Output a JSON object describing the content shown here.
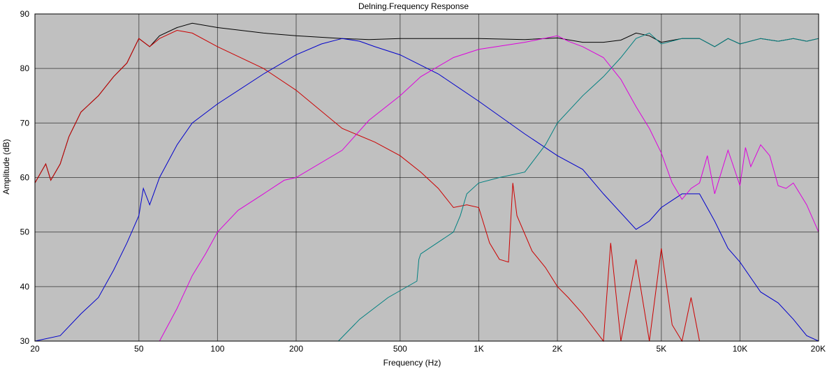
{
  "chart_data": {
    "type": "line",
    "title": "Delning.Frequency Response",
    "xlabel": "Frequency (Hz)",
    "ylabel": "Amplitude (dB)",
    "xscale": "log",
    "xlim": [
      20,
      20000
    ],
    "ylim": [
      30,
      90
    ],
    "grid": true,
    "x_ticks": [
      {
        "value": 20,
        "label": "20"
      },
      {
        "value": 50,
        "label": "50"
      },
      {
        "value": 100,
        "label": "100"
      },
      {
        "value": 200,
        "label": "200"
      },
      {
        "value": 500,
        "label": "500"
      },
      {
        "value": 1000,
        "label": "1K"
      },
      {
        "value": 2000,
        "label": "2K"
      },
      {
        "value": 5000,
        "label": "5K"
      },
      {
        "value": 10000,
        "label": "10K"
      },
      {
        "value": 20000,
        "label": "20K"
      }
    ],
    "y_ticks": [
      {
        "value": 30,
        "label": "30"
      },
      {
        "value": 40,
        "label": "40"
      },
      {
        "value": 50,
        "label": "50"
      },
      {
        "value": 60,
        "label": "60"
      },
      {
        "value": 70,
        "label": "70"
      },
      {
        "value": 80,
        "label": "80"
      },
      {
        "value": 90,
        "label": "90"
      }
    ],
    "series": [
      {
        "color": "#000000",
        "points": [
          [
            20,
            59
          ],
          [
            22,
            62.5
          ],
          [
            23,
            59.5
          ],
          [
            25,
            62.5
          ],
          [
            27,
            67.5
          ],
          [
            30,
            72
          ],
          [
            35,
            75
          ],
          [
            40,
            78.5
          ],
          [
            45,
            81
          ],
          [
            50,
            85.5
          ],
          [
            55,
            84
          ],
          [
            60,
            86
          ],
          [
            70,
            87.5
          ],
          [
            80,
            88.3
          ],
          [
            100,
            87.5
          ],
          [
            150,
            86.5
          ],
          [
            200,
            86
          ],
          [
            300,
            85.5
          ],
          [
            380,
            85.3
          ],
          [
            500,
            85.5
          ],
          [
            700,
            85.5
          ],
          [
            1000,
            85.5
          ],
          [
            1500,
            85.3
          ],
          [
            2000,
            85.6
          ],
          [
            2500,
            84.8
          ],
          [
            3000,
            84.8
          ],
          [
            3500,
            85.2
          ],
          [
            4000,
            86.5
          ],
          [
            4500,
            86
          ],
          [
            5000,
            84.8
          ],
          [
            6000,
            85.5
          ],
          [
            7000,
            85.5
          ],
          [
            8000,
            84
          ],
          [
            9000,
            85.5
          ],
          [
            10000,
            84.5
          ],
          [
            12000,
            85.5
          ],
          [
            14000,
            85
          ],
          [
            16000,
            85.5
          ],
          [
            18000,
            85
          ],
          [
            20000,
            85.5
          ]
        ]
      },
      {
        "color": "#cc0000",
        "points": [
          [
            20,
            59
          ],
          [
            22,
            62.5
          ],
          [
            23,
            59.5
          ],
          [
            25,
            62.5
          ],
          [
            27,
            67.5
          ],
          [
            30,
            72
          ],
          [
            35,
            75
          ],
          [
            40,
            78.5
          ],
          [
            45,
            81
          ],
          [
            50,
            85.5
          ],
          [
            55,
            84
          ],
          [
            60,
            85.5
          ],
          [
            70,
            87
          ],
          [
            80,
            86.5
          ],
          [
            100,
            84
          ],
          [
            150,
            80
          ],
          [
            200,
            76
          ],
          [
            300,
            69
          ],
          [
            400,
            66.5
          ],
          [
            500,
            64
          ],
          [
            600,
            61
          ],
          [
            700,
            58
          ],
          [
            800,
            54.5
          ],
          [
            900,
            55
          ],
          [
            1000,
            54.5
          ],
          [
            1100,
            48
          ],
          [
            1200,
            45
          ],
          [
            1300,
            44.5
          ],
          [
            1350,
            59
          ],
          [
            1400,
            53
          ],
          [
            1600,
            46.5
          ],
          [
            1800,
            43.5
          ],
          [
            2000,
            40
          ],
          [
            2200,
            38
          ],
          [
            2500,
            35
          ],
          [
            3000,
            30
          ],
          [
            3200,
            48
          ],
          [
            3500,
            30
          ],
          [
            4000,
            45
          ],
          [
            4500,
            30
          ],
          [
            5000,
            47
          ],
          [
            5500,
            33
          ],
          [
            6000,
            30
          ],
          [
            6500,
            38
          ],
          [
            7000,
            30
          ]
        ]
      },
      {
        "color": "#0000cc",
        "points": [
          [
            20,
            30
          ],
          [
            25,
            31
          ],
          [
            30,
            35
          ],
          [
            35,
            38
          ],
          [
            40,
            43
          ],
          [
            45,
            48
          ],
          [
            50,
            53
          ],
          [
            52,
            58
          ],
          [
            55,
            55
          ],
          [
            60,
            60
          ],
          [
            70,
            66
          ],
          [
            80,
            70
          ],
          [
            100,
            73.5
          ],
          [
            150,
            79
          ],
          [
            200,
            82.5
          ],
          [
            250,
            84.5
          ],
          [
            300,
            85.5
          ],
          [
            350,
            85
          ],
          [
            400,
            84
          ],
          [
            500,
            82.5
          ],
          [
            700,
            79
          ],
          [
            1000,
            74
          ],
          [
            1500,
            68
          ],
          [
            2000,
            64
          ],
          [
            2500,
            61.5
          ],
          [
            3000,
            57
          ],
          [
            4000,
            50.5
          ],
          [
            4500,
            52
          ],
          [
            5000,
            54.5
          ],
          [
            6000,
            57
          ],
          [
            7000,
            57
          ],
          [
            8000,
            52
          ],
          [
            9000,
            47
          ],
          [
            10000,
            44.5
          ],
          [
            12000,
            39
          ],
          [
            14000,
            37
          ],
          [
            16000,
            34
          ],
          [
            18000,
            31
          ],
          [
            20000,
            30
          ]
        ]
      },
      {
        "color": "#dd00dd",
        "points": [
          [
            60,
            30
          ],
          [
            70,
            36
          ],
          [
            80,
            42
          ],
          [
            90,
            46
          ],
          [
            100,
            50
          ],
          [
            120,
            54
          ],
          [
            150,
            57
          ],
          [
            180,
            59.5
          ],
          [
            200,
            60
          ],
          [
            300,
            65
          ],
          [
            380,
            70.5
          ],
          [
            500,
            75
          ],
          [
            600,
            78.5
          ],
          [
            800,
            82
          ],
          [
            1000,
            83.5
          ],
          [
            1500,
            84.8
          ],
          [
            2000,
            86
          ],
          [
            2200,
            85
          ],
          [
            2500,
            84
          ],
          [
            3000,
            82
          ],
          [
            3500,
            78
          ],
          [
            4000,
            73
          ],
          [
            4500,
            69
          ],
          [
            5000,
            64.5
          ],
          [
            5500,
            59
          ],
          [
            6000,
            56
          ],
          [
            6500,
            58
          ],
          [
            7000,
            59
          ],
          [
            7500,
            64
          ],
          [
            8000,
            57
          ],
          [
            9000,
            65
          ],
          [
            10000,
            58.5
          ],
          [
            10500,
            65.5
          ],
          [
            11000,
            62
          ],
          [
            12000,
            66
          ],
          [
            13000,
            64
          ],
          [
            14000,
            58.5
          ],
          [
            15000,
            58
          ],
          [
            16000,
            59
          ],
          [
            18000,
            55
          ],
          [
            20000,
            50
          ]
        ]
      },
      {
        "color": "#008080",
        "points": [
          [
            290,
            30
          ],
          [
            350,
            34
          ],
          [
            450,
            38
          ],
          [
            580,
            41
          ],
          [
            590,
            45
          ],
          [
            600,
            46
          ],
          [
            800,
            50
          ],
          [
            850,
            53
          ],
          [
            900,
            57
          ],
          [
            1000,
            59
          ],
          [
            1200,
            60
          ],
          [
            1500,
            61
          ],
          [
            1800,
            66
          ],
          [
            2000,
            70
          ],
          [
            2500,
            75
          ],
          [
            3000,
            78.5
          ],
          [
            3500,
            82
          ],
          [
            4000,
            85.5
          ],
          [
            4500,
            86.5
          ],
          [
            5000,
            84.5
          ],
          [
            6000,
            85.5
          ],
          [
            7000,
            85.5
          ],
          [
            8000,
            84
          ],
          [
            9000,
            85.5
          ],
          [
            10000,
            84.5
          ],
          [
            12000,
            85.5
          ],
          [
            14000,
            85
          ],
          [
            16000,
            85.5
          ],
          [
            18000,
            85
          ],
          [
            20000,
            85.5
          ]
        ]
      }
    ]
  }
}
